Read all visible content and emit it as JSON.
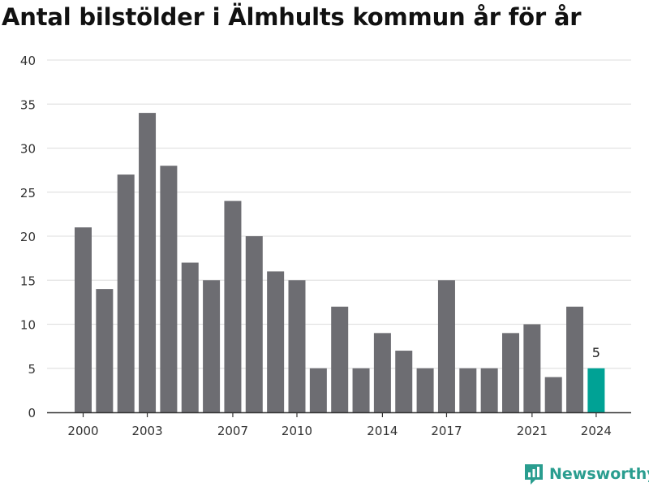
{
  "chart_data": {
    "type": "bar",
    "title": "Antal bilstölder i Älmhults kommun år för år",
    "x": [
      2000,
      2001,
      2002,
      2003,
      2004,
      2005,
      2006,
      2007,
      2008,
      2009,
      2010,
      2011,
      2012,
      2013,
      2014,
      2015,
      2016,
      2017,
      2018,
      2019,
      2020,
      2021,
      2022,
      2023,
      2024
    ],
    "values": [
      21,
      14,
      27,
      34,
      28,
      17,
      15,
      24,
      20,
      16,
      15,
      5,
      12,
      5,
      9,
      7,
      5,
      15,
      5,
      5,
      9,
      10,
      4,
      12,
      5
    ],
    "x_tick_labels": [
      "2000",
      "2003",
      "2007",
      "2010",
      "2014",
      "2017",
      "2021",
      "2024"
    ],
    "y_tick_labels": [
      "0",
      "5",
      "10",
      "15",
      "20",
      "25",
      "30",
      "35",
      "40"
    ],
    "ylim": [
      0,
      40
    ],
    "grid": true,
    "highlight": {
      "x": 2024,
      "value_label": "5"
    },
    "colors": {
      "bar": "#6d6d72",
      "highlight": "#00a295",
      "grid": "#e3e3e3",
      "axis": "#333333"
    }
  },
  "brand": {
    "name": "Newsworthy",
    "icon": "newsworthy-logo-icon",
    "color": "#2a9d8f"
  }
}
